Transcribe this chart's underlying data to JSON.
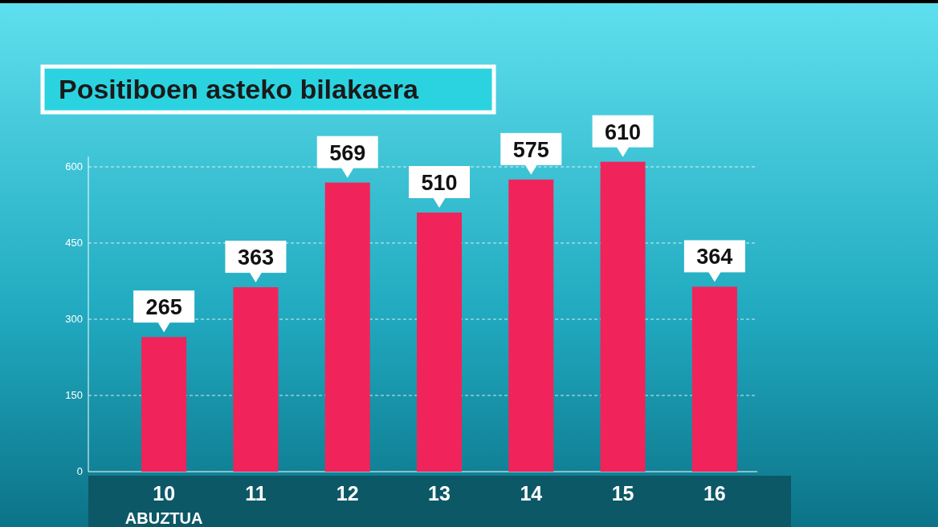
{
  "chart_data": {
    "type": "bar",
    "title": "Positiboen asteko bilakaera",
    "categories": [
      "10",
      "11",
      "12",
      "13",
      "14",
      "15",
      "16"
    ],
    "values": [
      265,
      363,
      569,
      510,
      575,
      610,
      364
    ],
    "color": "#f0245a",
    "ylim": [
      0,
      620
    ],
    "yticks": [
      0,
      150,
      300,
      450,
      600
    ],
    "grid": "y",
    "data_labels": true,
    "annotations": [
      "ABUZTUA"
    ]
  }
}
